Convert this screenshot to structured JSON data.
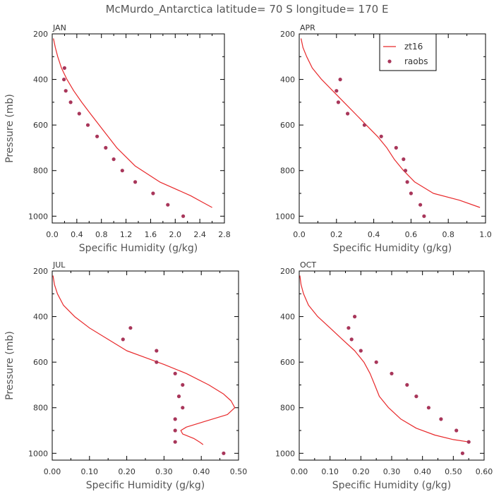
{
  "title": "McMurdo_Antarctica  latitude= 70 S longitude= 170 E",
  "colors": {
    "model": "#e8292b",
    "obs": "#a8365a",
    "axis": "#000000",
    "text": "#333333"
  },
  "legend": {
    "model_label": "zt16",
    "obs_label": "raobs",
    "placement": "top-right of APR panel"
  },
  "chart_data": [
    {
      "type": "line",
      "panel": "JAN",
      "xlabel": "Specific Humidity (g/kg)",
      "ylabel": "Pressure (mb)",
      "xlim": [
        0.0,
        2.8
      ],
      "ylim": [
        200,
        1030
      ],
      "y_inverted": true,
      "xticks": [
        0.0,
        0.4,
        0.8,
        1.2,
        1.6,
        2.0,
        2.4,
        2.8
      ],
      "xtick_labels": [
        "0.0",
        "0.4",
        "0.8",
        "1.2",
        "1.6",
        "2.0",
        "2.4",
        "2.8"
      ],
      "yticks": [
        200,
        400,
        600,
        800,
        1000
      ],
      "ytick_labels": [
        "200",
        "400",
        "600",
        "800",
        "1000"
      ],
      "series": [
        {
          "name": "zt16",
          "kind": "line",
          "x": [
            0.02,
            0.05,
            0.09,
            0.15,
            0.24,
            0.35,
            0.48,
            0.62,
            0.82,
            1.05,
            1.35,
            1.75,
            2.25,
            2.45,
            2.6
          ],
          "y": [
            220,
            260,
            300,
            350,
            400,
            450,
            500,
            550,
            620,
            700,
            780,
            850,
            910,
            940,
            962
          ]
        },
        {
          "name": "raobs",
          "kind": "scatter",
          "x": [
            0.2,
            0.19,
            0.22,
            0.3,
            0.44,
            0.58,
            0.73,
            0.87,
            1.0,
            1.14,
            1.35,
            1.64,
            1.88,
            2.13
          ],
          "y": [
            350,
            400,
            450,
            500,
            550,
            600,
            650,
            700,
            750,
            800,
            850,
            900,
            950,
            1000
          ]
        }
      ]
    },
    {
      "type": "line",
      "panel": "APR",
      "xlabel": "Specific Humidity (g/kg)",
      "ylabel": "",
      "xlim": [
        0.0,
        1.0
      ],
      "ylim": [
        200,
        1030
      ],
      "y_inverted": true,
      "xticks": [
        0.0,
        0.2,
        0.4,
        0.6,
        0.8,
        1.0
      ],
      "xtick_labels": [
        "0.0",
        "0.2",
        "0.4",
        "0.6",
        "0.8",
        "1.0"
      ],
      "yticks": [
        200,
        400,
        600,
        800,
        1000
      ],
      "ytick_labels": [
        "200",
        "400",
        "600",
        "800",
        "1000"
      ],
      "series": [
        {
          "name": "zt16",
          "kind": "line",
          "x": [
            0.01,
            0.02,
            0.04,
            0.07,
            0.12,
            0.18,
            0.24,
            0.3,
            0.36,
            0.42,
            0.47,
            0.51,
            0.56,
            0.62,
            0.72,
            0.86,
            0.97
          ],
          "y": [
            220,
            260,
            300,
            350,
            400,
            450,
            500,
            550,
            600,
            650,
            700,
            750,
            800,
            850,
            900,
            930,
            962
          ]
        },
        {
          "name": "raobs",
          "kind": "scatter",
          "x": [
            0.22,
            0.2,
            0.21,
            0.26,
            0.35,
            0.44,
            0.52,
            0.56,
            0.57,
            0.58,
            0.6,
            0.65,
            0.67
          ],
          "y": [
            400,
            450,
            500,
            550,
            600,
            650,
            700,
            750,
            800,
            850,
            900,
            950,
            1000
          ]
        }
      ]
    },
    {
      "type": "line",
      "panel": "JUL",
      "xlabel": "Specific Humidity (g/kg)",
      "ylabel": "Pressure (mb)",
      "xlim": [
        0.0,
        0.5
      ],
      "ylim": [
        200,
        1030
      ],
      "y_inverted": true,
      "xticks": [
        0.0,
        0.1,
        0.2,
        0.3,
        0.4,
        0.5
      ],
      "xtick_labels": [
        "0.00",
        "0.10",
        "0.20",
        "0.30",
        "0.40",
        "0.50"
      ],
      "yticks": [
        200,
        400,
        600,
        800,
        1000
      ],
      "ytick_labels": [
        "200",
        "400",
        "600",
        "800",
        "1000"
      ],
      "series": [
        {
          "name": "zt16",
          "kind": "line",
          "x": [
            0.002,
            0.006,
            0.014,
            0.03,
            0.06,
            0.1,
            0.15,
            0.2,
            0.25,
            0.3,
            0.36,
            0.42,
            0.46,
            0.48,
            0.49,
            0.47,
            0.41,
            0.36,
            0.345,
            0.35,
            0.38,
            0.395,
            0.405
          ],
          "y": [
            220,
            260,
            300,
            350,
            400,
            450,
            500,
            550,
            580,
            610,
            650,
            700,
            740,
            770,
            800,
            830,
            860,
            885,
            900,
            915,
            935,
            950,
            962
          ]
        },
        {
          "name": "raobs",
          "kind": "scatter",
          "x": [
            0.21,
            0.19,
            0.28,
            0.28,
            0.33,
            0.35,
            0.34,
            0.35,
            0.33,
            0.33,
            0.33,
            0.46
          ],
          "y": [
            450,
            500,
            550,
            600,
            650,
            700,
            750,
            800,
            850,
            900,
            950,
            1000
          ]
        }
      ]
    },
    {
      "type": "line",
      "panel": "OCT",
      "xlabel": "Specific Humidity (g/kg)",
      "ylabel": "",
      "xlim": [
        0.0,
        0.6
      ],
      "ylim": [
        200,
        1030
      ],
      "y_inverted": true,
      "xticks": [
        0.0,
        0.1,
        0.2,
        0.3,
        0.4,
        0.5,
        0.6
      ],
      "xtick_labels": [
        "0.00",
        "0.10",
        "0.20",
        "0.30",
        "0.40",
        "0.50",
        "0.60"
      ],
      "yticks": [
        200,
        400,
        600,
        800,
        1000
      ],
      "ytick_labels": [
        "200",
        "400",
        "600",
        "800",
        "1000"
      ],
      "series": [
        {
          "name": "zt16",
          "kind": "line",
          "x": [
            0.002,
            0.006,
            0.014,
            0.03,
            0.06,
            0.1,
            0.14,
            0.18,
            0.21,
            0.23,
            0.245,
            0.26,
            0.29,
            0.33,
            0.38,
            0.44,
            0.5,
            0.55
          ],
          "y": [
            220,
            260,
            300,
            350,
            400,
            450,
            500,
            550,
            600,
            650,
            700,
            750,
            800,
            850,
            890,
            920,
            940,
            950
          ]
        },
        {
          "name": "raobs",
          "kind": "scatter",
          "x": [
            0.18,
            0.16,
            0.17,
            0.2,
            0.25,
            0.3,
            0.35,
            0.38,
            0.42,
            0.46,
            0.51,
            0.55,
            0.53
          ],
          "y": [
            400,
            450,
            500,
            550,
            600,
            650,
            700,
            750,
            800,
            850,
            900,
            950,
            1000
          ]
        }
      ]
    }
  ]
}
